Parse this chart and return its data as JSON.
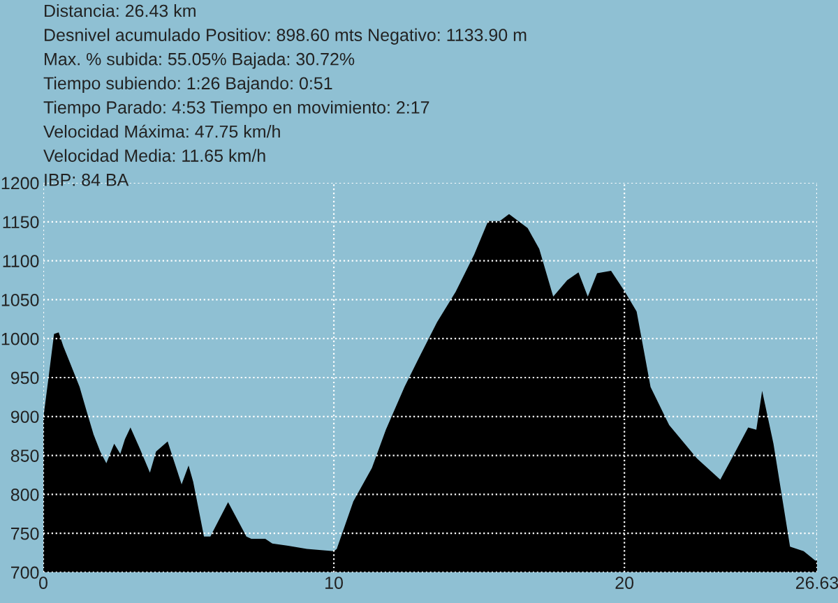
{
  "chart_data": {
    "type": "area",
    "annotations": [
      "Distancia: 26.43 km",
      "Desnivel acumulado Positiov: 898.60 mts Negativo: 1133.90 m",
      "Max. % subida: 55.05% Bajada: 30.72%",
      "Tiempo subiendo: 1:26 Bajando: 0:51",
      "Tiempo Parado: 4:53 Tiempo en movimiento: 2:17",
      "Velocidad Máxima: 47.75 km/h",
      "Velocidad Media: 11.65 km/h",
      "IBP: 84 BA"
    ],
    "series": [
      {
        "color": "#000000",
        "x": [
          0,
          0.16,
          0.37,
          0.53,
          0.69,
          0.93,
          1.25,
          1.49,
          1.73,
          1.96,
          2.17,
          2.44,
          2.65,
          2.81,
          3.0,
          3.32,
          3.67,
          3.88,
          4.28,
          4.47,
          4.76,
          5.0,
          5.16,
          5.53,
          5.75,
          6.36,
          6.99,
          7.16,
          7.64,
          7.88,
          8.43,
          9.07,
          10.0,
          10.1,
          10.67,
          11.31,
          11.79,
          12.43,
          12.91,
          13.55,
          14.19,
          14.83,
          15.31,
          15.71,
          16.03,
          16.67,
          17.07,
          17.55,
          18.03,
          18.42,
          18.74,
          19.06,
          19.54,
          20.02,
          20.42,
          20.9,
          21.54,
          22.5,
          23.3,
          23.78,
          24.26,
          24.54,
          24.74,
          25.13,
          25.7,
          26.17,
          26.57,
          26.63
        ],
        "values": [
          898,
          944,
          1006,
          1008,
          990,
          968,
          938,
          907,
          877,
          855,
          840,
          865,
          852,
          871,
          886,
          859,
          828,
          855,
          868,
          846,
          813,
          837,
          816,
          746,
          746,
          790,
          746,
          743,
          743,
          737,
          734,
          730,
          727,
          730,
          791,
          834,
          883,
          938,
          974,
          1021,
          1060,
          1108,
          1151,
          1151,
          1160,
          1142,
          1115,
          1054,
          1075,
          1085,
          1054,
          1084,
          1087,
          1060,
          1035,
          938,
          889,
          846,
          819,
          852,
          886,
          883,
          933,
          865,
          733,
          727,
          715,
          715
        ]
      }
    ],
    "xlim": [
      0,
      26.63
    ],
    "xticks": [
      0,
      10,
      20,
      26.63
    ],
    "ylim": [
      700,
      1200
    ],
    "yticks": [
      700,
      750,
      800,
      850,
      900,
      950,
      1000,
      1050,
      1100,
      1150,
      1200
    ],
    "grid": true
  }
}
